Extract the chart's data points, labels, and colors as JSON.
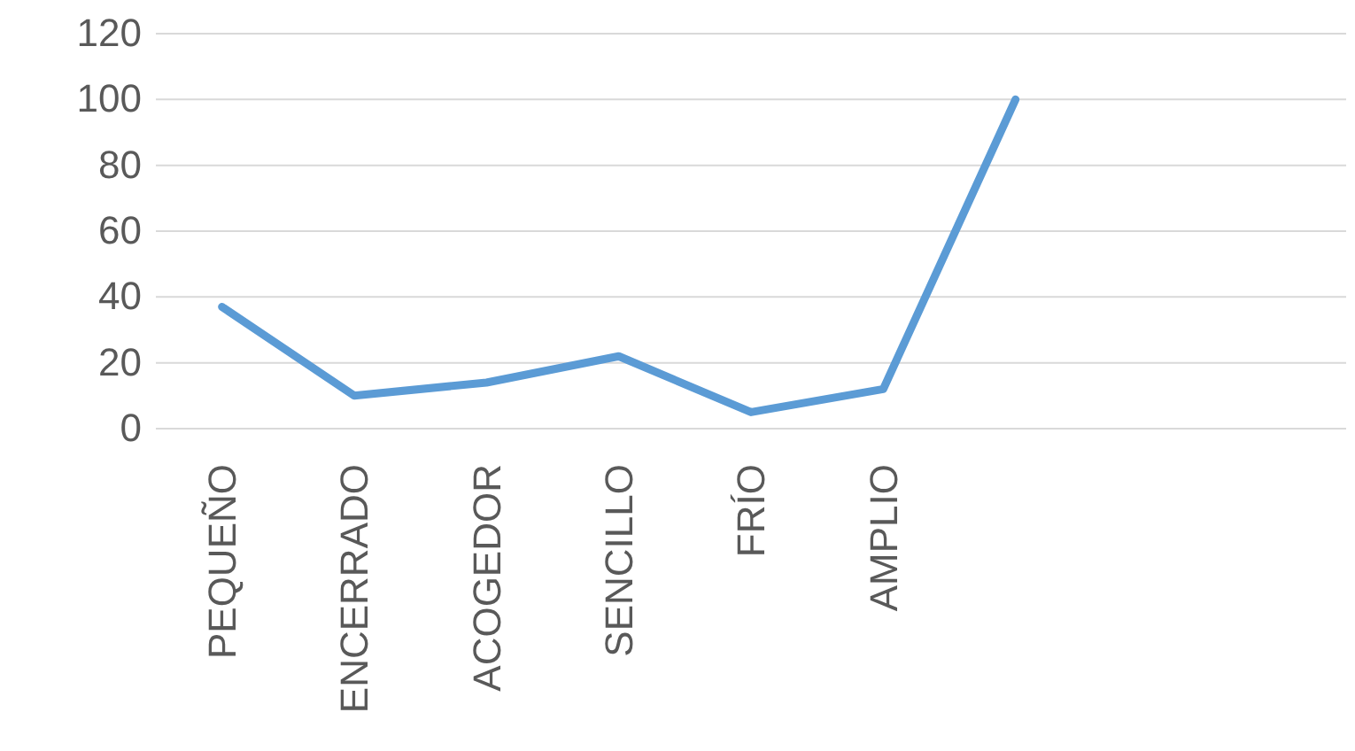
{
  "chart_data": {
    "type": "line",
    "categories": [
      "PEQUEÑO",
      "ENCERRADO",
      "ACOGEDOR",
      "SENCILLO",
      "FRÍO",
      "AMPLIO",
      null,
      null,
      null
    ],
    "series": [
      {
        "color": "#5b9bd5",
        "values": [
          37,
          10,
          14,
          22,
          5,
          12,
          100,
          null,
          null
        ]
      }
    ],
    "ylim": [
      0,
      120
    ],
    "yticks": [
      0,
      20,
      40,
      60,
      80,
      100,
      120
    ],
    "grid": "y",
    "marker": "none",
    "line_style": "solid"
  }
}
